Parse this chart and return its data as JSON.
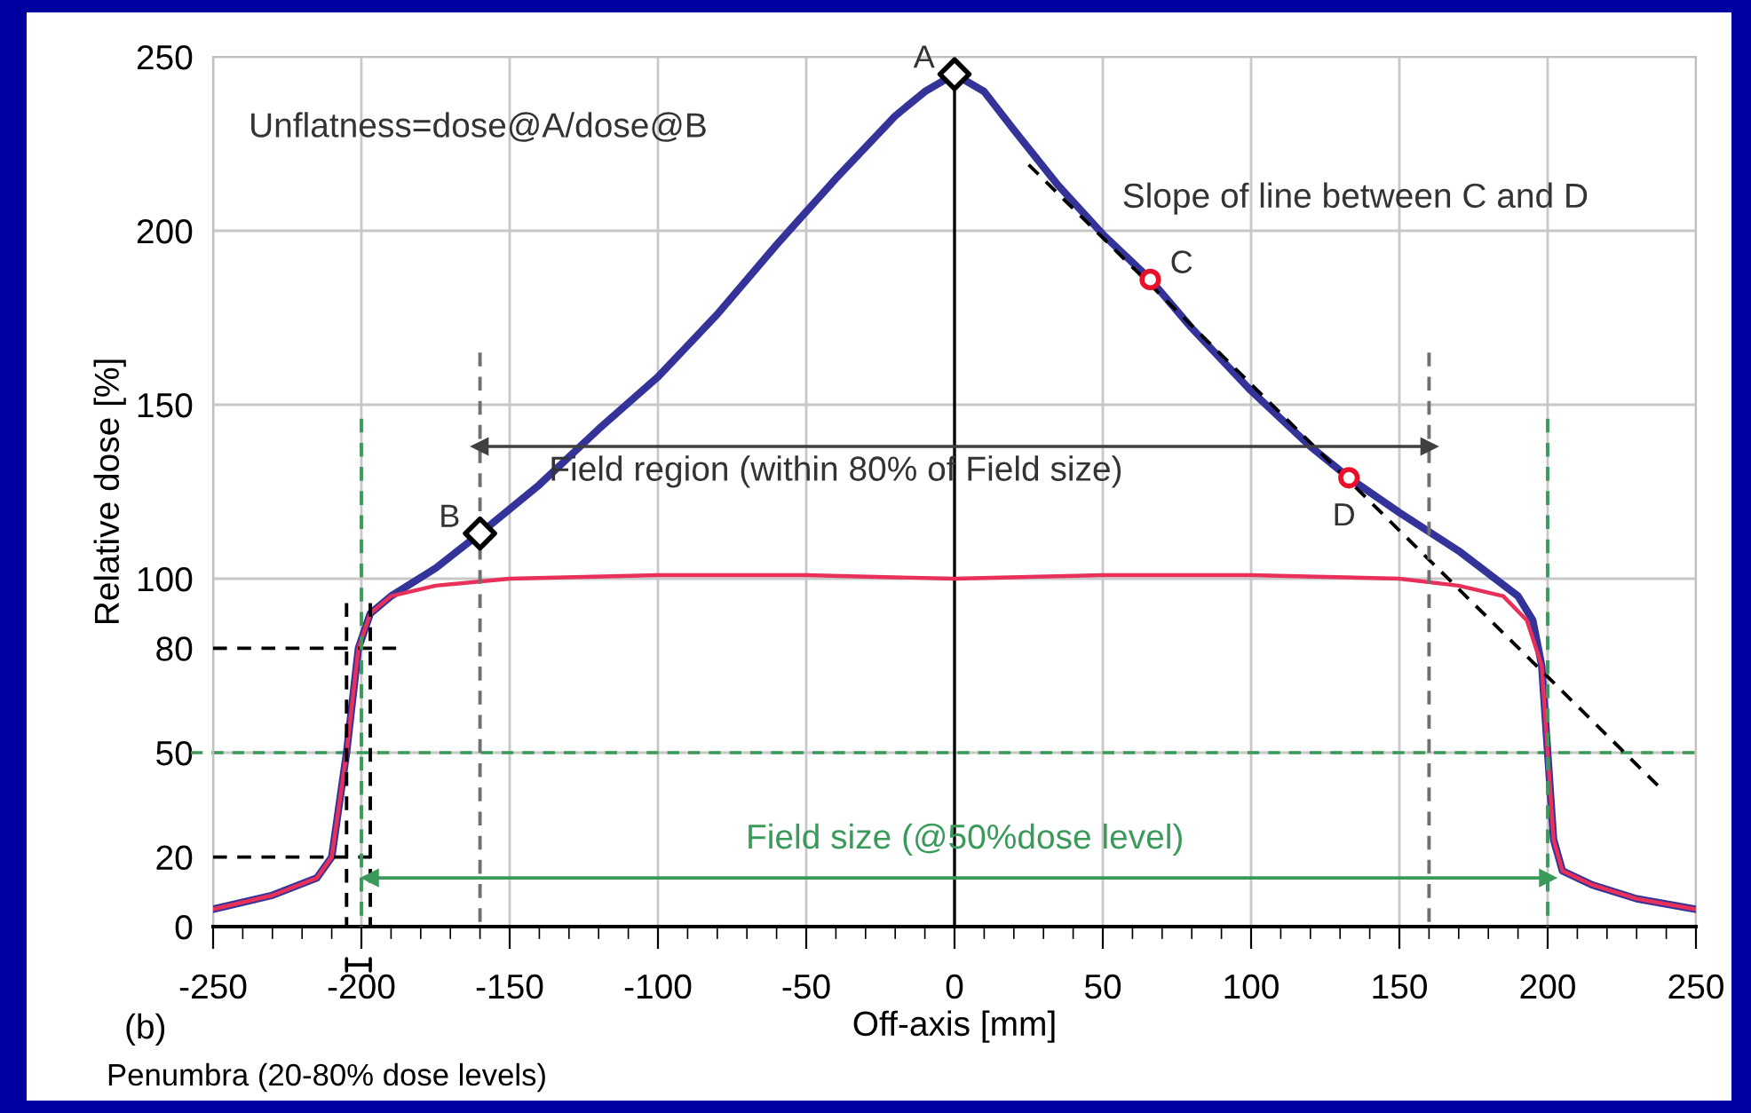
{
  "chart_data": {
    "type": "line",
    "xlabel": "Off-axis [mm]",
    "ylabel": "Relative dose [%]",
    "xlim": [
      -250,
      250
    ],
    "ylim": [
      0,
      250
    ],
    "xticks": [
      -250,
      {
        "value": -240,
        "label": null
      },
      {
        "value": -230,
        "label": null
      },
      {
        "value": -220,
        "label": null
      },
      {
        "value": -210,
        "label": null
      },
      -200,
      {
        "value": -190,
        "label": null
      },
      {
        "value": -180,
        "label": null
      },
      {
        "value": -170,
        "label": null
      },
      {
        "value": -160,
        "label": null
      },
      -150,
      {
        "value": -140,
        "label": null
      },
      {
        "value": -130,
        "label": null
      },
      {
        "value": -120,
        "label": null
      },
      {
        "value": -110,
        "label": null
      },
      -100,
      {
        "value": -90,
        "label": null
      },
      {
        "value": -80,
        "label": null
      },
      {
        "value": -70,
        "label": null
      },
      {
        "value": -60,
        "label": null
      },
      -50,
      {
        "value": -40,
        "label": null
      },
      {
        "value": -30,
        "label": null
      },
      {
        "value": -20,
        "label": null
      },
      {
        "value": -10,
        "label": null
      },
      0,
      {
        "value": 10,
        "label": null
      },
      {
        "value": 20,
        "label": null
      },
      {
        "value": 30,
        "label": null
      },
      {
        "value": 40,
        "label": null
      },
      50,
      {
        "value": 60,
        "label": null
      },
      {
        "value": 70,
        "label": null
      },
      {
        "value": 80,
        "label": null
      },
      {
        "value": 90,
        "label": null
      },
      100,
      {
        "value": 110,
        "label": null
      },
      {
        "value": 120,
        "label": null
      },
      {
        "value": 130,
        "label": null
      },
      {
        "value": 140,
        "label": null
      },
      150,
      {
        "value": 160,
        "label": null
      },
      {
        "value": 170,
        "label": null
      },
      {
        "value": 180,
        "label": null
      },
      {
        "value": 190,
        "label": null
      },
      200,
      {
        "value": 210,
        "label": null
      },
      {
        "value": 220,
        "label": null
      },
      {
        "value": 230,
        "label": null
      },
      {
        "value": 240,
        "label": null
      },
      250
    ],
    "yticks": [
      0,
      {
        "value": 20,
        "label": "20"
      },
      50,
      {
        "value": 80,
        "label": "80"
      },
      100,
      150,
      200,
      250
    ],
    "grid": true,
    "legend": false,
    "series": [
      {
        "color": "#33339a",
        "line_style": "solid",
        "x": [
          -250,
          -230,
          -215,
          -210,
          -205,
          -201,
          -197,
          -190,
          -175,
          -160,
          -140,
          -120,
          -100,
          -80,
          -60,
          -40,
          -20,
          -10,
          0,
          10,
          20,
          35,
          50,
          66,
          80,
          100,
          120,
          133,
          150,
          170,
          190,
          195,
          198,
          200,
          202,
          205,
          215,
          230,
          250
        ],
        "values": [
          5,
          9,
          14,
          20,
          50,
          80,
          90,
          95,
          103,
          113,
          127,
          143,
          158,
          176,
          196,
          215,
          233,
          240,
          245,
          240,
          229,
          213,
          199,
          186,
          172,
          154,
          138,
          129,
          119,
          108,
          95,
          88,
          75,
          50,
          25,
          16,
          12,
          8,
          5
        ]
      },
      {
        "color": "#e8305a",
        "line_style": "solid",
        "x": [
          -250,
          -230,
          -215,
          -210,
          -205,
          -201,
          -197,
          -190,
          -175,
          -150,
          -100,
          -50,
          0,
          50,
          100,
          150,
          170,
          185,
          193,
          198,
          200,
          202,
          205,
          215,
          230,
          250
        ],
        "values": [
          5,
          9,
          14,
          20,
          50,
          80,
          90,
          95,
          98,
          100,
          101,
          101,
          100,
          101,
          101,
          100,
          98,
          95,
          88,
          75,
          50,
          25,
          16,
          12,
          8,
          5
        ]
      },
      {
        "color": "#000000",
        "line_style": "dashed",
        "x": [
          25,
          239
        ],
        "values": [
          219,
          39
        ]
      },
      {
        "color": "#000000",
        "line_style": "dashed",
        "x": [
          -250,
          -187
        ],
        "values": [
          80,
          80
        ]
      },
      {
        "color": "#000000",
        "line_style": "dashed",
        "x": [
          -250,
          -197
        ],
        "values": [
          20,
          20
        ]
      },
      {
        "color": "#000000",
        "line_style": "dashed",
        "x": [
          -205,
          -205
        ],
        "values": [
          93,
          0
        ]
      },
      {
        "color": "#000000",
        "line_style": "dashed",
        "x": [
          -197,
          -197
        ],
        "values": [
          93,
          0
        ]
      },
      {
        "color": "#3a9a5a",
        "line_style": "dashed",
        "x": [
          -200,
          -200
        ],
        "values": [
          146,
          0
        ]
      },
      {
        "color": "#3a9a5a",
        "line_style": "dashed",
        "x": [
          200,
          200
        ],
        "values": [
          146,
          0
        ]
      },
      {
        "color": "#707070",
        "line_style": "dashed",
        "x": [
          -160,
          -160
        ],
        "values": [
          165,
          0
        ]
      },
      {
        "color": "#707070",
        "line_style": "dashed",
        "x": [
          160,
          160
        ],
        "values": [
          165,
          0
        ]
      },
      {
        "color": "#404040",
        "line_style": "solid",
        "marker": "triangle",
        "x": [
          -160,
          160
        ],
        "values": [
          138,
          138
        ]
      },
      {
        "color": "#3a9a5a",
        "line_style": "solid",
        "marker": "triangle",
        "x": [
          -197,
          200
        ],
        "values": [
          14,
          14
        ]
      },
      {
        "type": "scatter",
        "color": "#000000",
        "marker": "diamond",
        "x": [
          0,
          -160
        ],
        "values": [
          245,
          113
        ],
        "value_labels": [
          "A",
          "B"
        ]
      },
      {
        "type": "scatter",
        "color": "#e8102a",
        "marker": "circle",
        "x": [
          66,
          133
        ],
        "values": [
          186,
          129
        ],
        "value_labels": [
          "C",
          "D"
        ]
      }
    ],
    "ref_lines": [
      {
        "axis": "y",
        "value": 50,
        "color": "#3a9a5a",
        "line_style": "dashed"
      },
      {
        "axis": "x",
        "value": 0,
        "color": "#000000",
        "line_style": "solid"
      }
    ],
    "annotations": [
      "Unflatness=dose@A/dose@B",
      "Slope of line between C and D",
      "(b)",
      "Field region (within 80% of Field size)",
      "Field size (@50%dose level)",
      "Penumbra (20-80% dose levels)"
    ]
  }
}
